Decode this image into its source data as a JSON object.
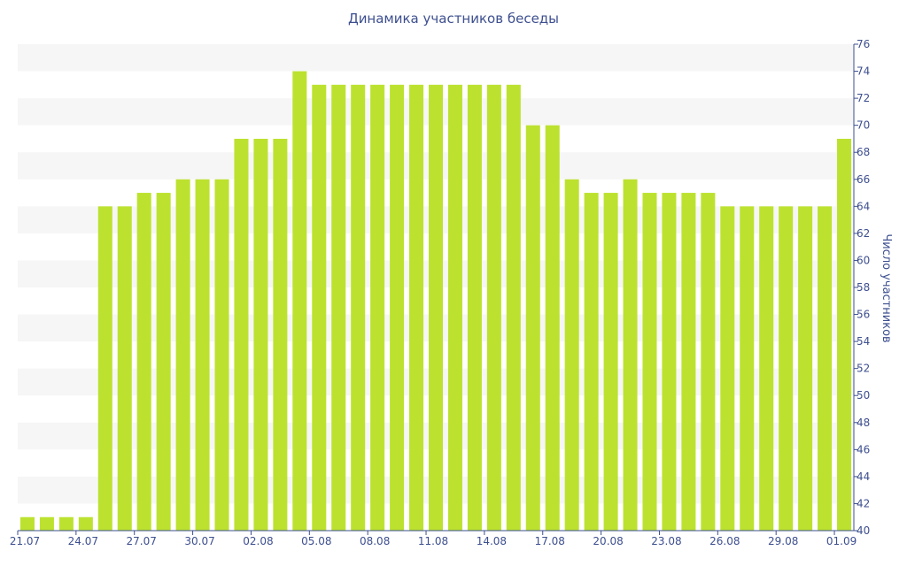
{
  "chart_data": {
    "type": "bar",
    "title": "Динамика участников беседы",
    "xlabel": "",
    "ylabel": "Число участников",
    "ylim": [
      40,
      76
    ],
    "y_ticks": [
      40,
      42,
      44,
      46,
      48,
      50,
      52,
      54,
      56,
      58,
      60,
      62,
      64,
      66,
      68,
      70,
      72,
      74,
      76
    ],
    "y_axis_position": "right",
    "grid": "alternating horizontal bands",
    "bar_color": "#bce22f",
    "band_color": "#f6f6f6",
    "text_color": "#3d4f8f",
    "categories": [
      "21.07",
      "22.07",
      "23.07",
      "24.07",
      "25.07",
      "26.07",
      "27.07",
      "28.07",
      "29.07",
      "30.07",
      "31.07",
      "01.08",
      "02.08",
      "03.08",
      "04.08",
      "05.08",
      "06.08",
      "07.08",
      "08.08",
      "09.08",
      "10.08",
      "11.08",
      "12.08",
      "13.08",
      "14.08",
      "15.08",
      "16.08",
      "17.08",
      "18.08",
      "19.08",
      "20.08",
      "21.08",
      "22.08",
      "23.08",
      "24.08",
      "25.08",
      "26.08",
      "27.08",
      "28.08",
      "29.08",
      "30.08",
      "31.08",
      "01.09"
    ],
    "x_tick_labels": [
      "21.07",
      "24.07",
      "27.07",
      "30.07",
      "02.08",
      "05.08",
      "08.08",
      "11.08",
      "14.08",
      "17.08",
      "20.08",
      "23.08",
      "26.08",
      "29.08",
      "01.09"
    ],
    "series": [
      {
        "values": [
          41,
          41,
          41,
          41,
          64,
          64,
          65,
          65,
          66,
          66,
          66,
          69,
          69,
          69,
          74,
          73,
          73,
          73,
          73,
          73,
          73,
          73,
          73,
          73,
          73,
          73,
          70,
          70,
          66,
          65,
          65,
          66,
          65,
          65,
          65,
          65,
          64,
          64,
          64,
          64,
          64,
          64,
          69
        ]
      }
    ]
  }
}
